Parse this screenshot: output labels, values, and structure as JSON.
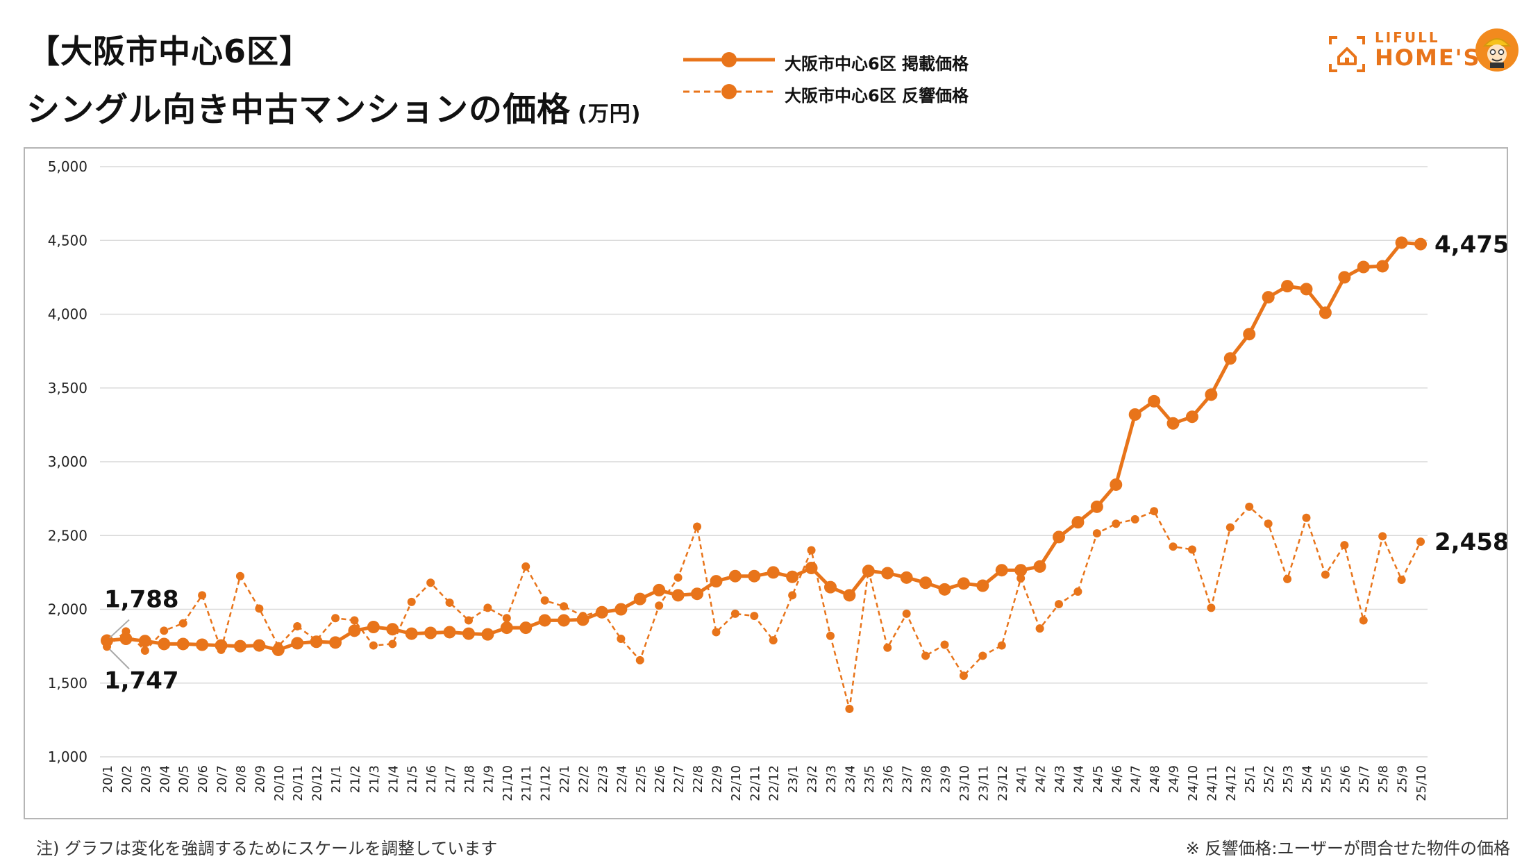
{
  "header": {
    "title_line1": "【大阪市中心6区】",
    "title_line2": "シングル向き中古マンションの価格",
    "unit": "(万円)"
  },
  "logo": {
    "top_text": "LIFULL",
    "main_text": "HOME'S",
    "icon": "house-frame-icon",
    "mascot": "mascot-face-icon"
  },
  "footnotes": {
    "left": "注) グラフは変化を強調するためにスケールを調整しています",
    "right": "※ 反響価格:ユーザーが問合せた物件の価格"
  },
  "colors": {
    "series_color": "#e8741a",
    "grid": "#d9d9d9",
    "frame": "#b5b5b5"
  },
  "chart_data": {
    "type": "line",
    "legend_placement": "top-center",
    "grid": true,
    "ylim": [
      1000,
      5000
    ],
    "yticks": [
      "1,000",
      "1,500",
      "2,000",
      "2,500",
      "3,000",
      "3,500",
      "4,000",
      "4,500",
      "5,000"
    ],
    "categories": [
      "20/1",
      "20/2",
      "20/3",
      "20/4",
      "20/5",
      "20/6",
      "20/7",
      "20/8",
      "20/9",
      "20/10",
      "20/11",
      "20/12",
      "21/1",
      "21/2",
      "21/3",
      "21/4",
      "21/5",
      "21/6",
      "21/7",
      "21/8",
      "21/9",
      "21/10",
      "21/11",
      "21/12",
      "22/1",
      "22/2",
      "22/3",
      "22/4",
      "22/5",
      "22/6",
      "22/7",
      "22/8",
      "22/9",
      "22/10",
      "22/11",
      "22/12",
      "23/1",
      "23/2",
      "23/3",
      "23/4",
      "23/5",
      "23/6",
      "23/7",
      "23/8",
      "23/9",
      "23/10",
      "23/11",
      "23/12",
      "24/1",
      "24/2",
      "24/3",
      "24/4",
      "24/5",
      "24/6",
      "24/7",
      "24/8",
      "24/9",
      "24/10",
      "24/11",
      "24/12",
      "25/1",
      "25/2",
      "25/3",
      "25/4",
      "25/5",
      "25/6",
      "25/7",
      "25/8",
      "25/9",
      "25/10"
    ],
    "series": [
      {
        "name": "大阪市中心6区 掲載価格",
        "style": "solid",
        "values": [
          1788,
          1800,
          1785,
          1765,
          1765,
          1760,
          1755,
          1750,
          1755,
          1725,
          1770,
          1780,
          1775,
          1855,
          1880,
          1865,
          1835,
          1840,
          1845,
          1835,
          1830,
          1875,
          1875,
          1925,
          1925,
          1930,
          1980,
          2000,
          2070,
          2130,
          2095,
          2105,
          2190,
          2225,
          2225,
          2250,
          2220,
          2280,
          2150,
          2095,
          2260,
          2245,
          2215,
          2180,
          2135,
          2175,
          2160,
          2265,
          2265,
          2290,
          2490,
          2590,
          2695,
          2845,
          3320,
          3410,
          3260,
          3305,
          3455,
          3700,
          3865,
          4115,
          4190,
          4170,
          4010,
          4250,
          4320,
          4325,
          4485,
          4475
        ]
      },
      {
        "name": "大阪市中心6区 反響価格",
        "style": "dashed",
        "values": [
          1747,
          1850,
          1720,
          1855,
          1905,
          2095,
          1725,
          2225,
          2005,
          1750,
          1885,
          1790,
          1940,
          1925,
          1755,
          1765,
          2050,
          2180,
          2045,
          1925,
          2010,
          1940,
          2290,
          2060,
          2020,
          1955,
          1990,
          1800,
          1655,
          2025,
          2215,
          2560,
          1845,
          1970,
          1955,
          1790,
          2095,
          2400,
          1820,
          1325,
          2265,
          1740,
          1970,
          1685,
          1760,
          1550,
          1685,
          1755,
          2210,
          1870,
          2035,
          2120,
          2515,
          2580,
          2610,
          2665,
          2425,
          2405,
          2010,
          2555,
          2695,
          2580,
          2205,
          2620,
          2235,
          2435,
          1925,
          2495,
          2200,
          2458
        ]
      }
    ],
    "annotations": [
      {
        "label": "1,788",
        "series": 0,
        "index": 0
      },
      {
        "label": "1,747",
        "series": 1,
        "index": 0
      },
      {
        "label": "4,475",
        "series": 0,
        "index": 69
      },
      {
        "label": "2,458",
        "series": 1,
        "index": 69
      }
    ]
  }
}
